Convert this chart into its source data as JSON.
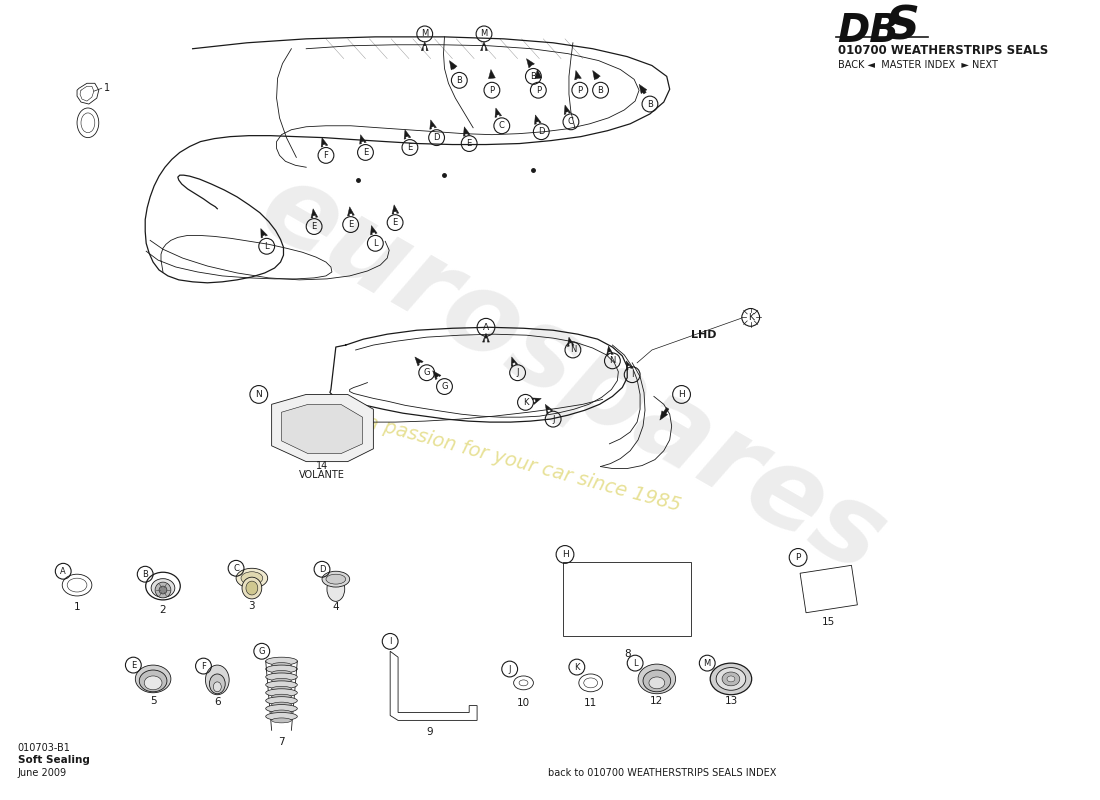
{
  "title_db": "DB",
  "title_s": "S",
  "subtitle": "010700 WEATHERSTRIPS SEALS",
  "nav_text": "BACK ◄  MASTER INDEX  ► NEXT",
  "doc_number": "010703-B1",
  "doc_name": "Soft Sealing",
  "doc_date": "June 2009",
  "back_link": "back to 010700 WEATHERSTRIPS SEALS INDEX",
  "lhd_label": "LHD",
  "bg_color": "#ffffff",
  "line_color": "#1a1a1a",
  "watermark_text": "eurospares",
  "passion_text": "a passion for your car since 1985"
}
